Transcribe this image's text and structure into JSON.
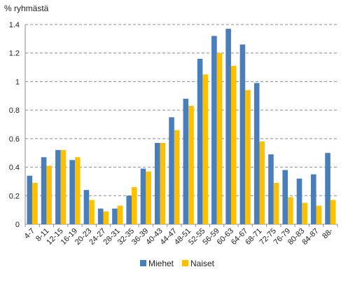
{
  "chart_data": {
    "type": "bar",
    "ylabel": "% ryhmästä",
    "ylim": [
      0,
      1.4
    ],
    "yticks": [
      0,
      0.2,
      0.4,
      0.6,
      0.8,
      1,
      1.2,
      1.4
    ],
    "ytick_labels": [
      "0",
      "0.2",
      "0.4",
      "0.6",
      "0.8",
      "1",
      "1.2",
      "1.4"
    ],
    "grid": true,
    "legend_position": "bottom",
    "categories": [
      "4-7",
      "8-11",
      "12-15",
      "16-19",
      "20-23",
      "24-27",
      "28-31",
      "32-35",
      "36-39",
      "40-43",
      "44-47",
      "48-51",
      "52-55",
      "56-59",
      "60-63",
      "64-67",
      "68-71",
      "72-75",
      "76-79",
      "80-83",
      "84-87",
      "88-"
    ],
    "series": [
      {
        "name": "Miehet",
        "color": "#4a7ebb",
        "values": [
          0.34,
          0.47,
          0.52,
          0.45,
          0.24,
          0.11,
          0.11,
          0.2,
          0.39,
          0.57,
          0.75,
          0.88,
          1.16,
          1.32,
          1.37,
          1.26,
          0.99,
          0.49,
          0.38,
          0.32,
          0.35,
          0.5
        ]
      },
      {
        "name": "Naiset",
        "color": "#ffc000",
        "values": [
          0.29,
          0.41,
          0.52,
          0.47,
          0.17,
          0.09,
          0.13,
          0.26,
          0.37,
          0.57,
          0.66,
          0.83,
          1.05,
          1.2,
          1.11,
          0.94,
          0.58,
          0.29,
          0.19,
          0.15,
          0.13,
          0.17
        ]
      }
    ]
  }
}
